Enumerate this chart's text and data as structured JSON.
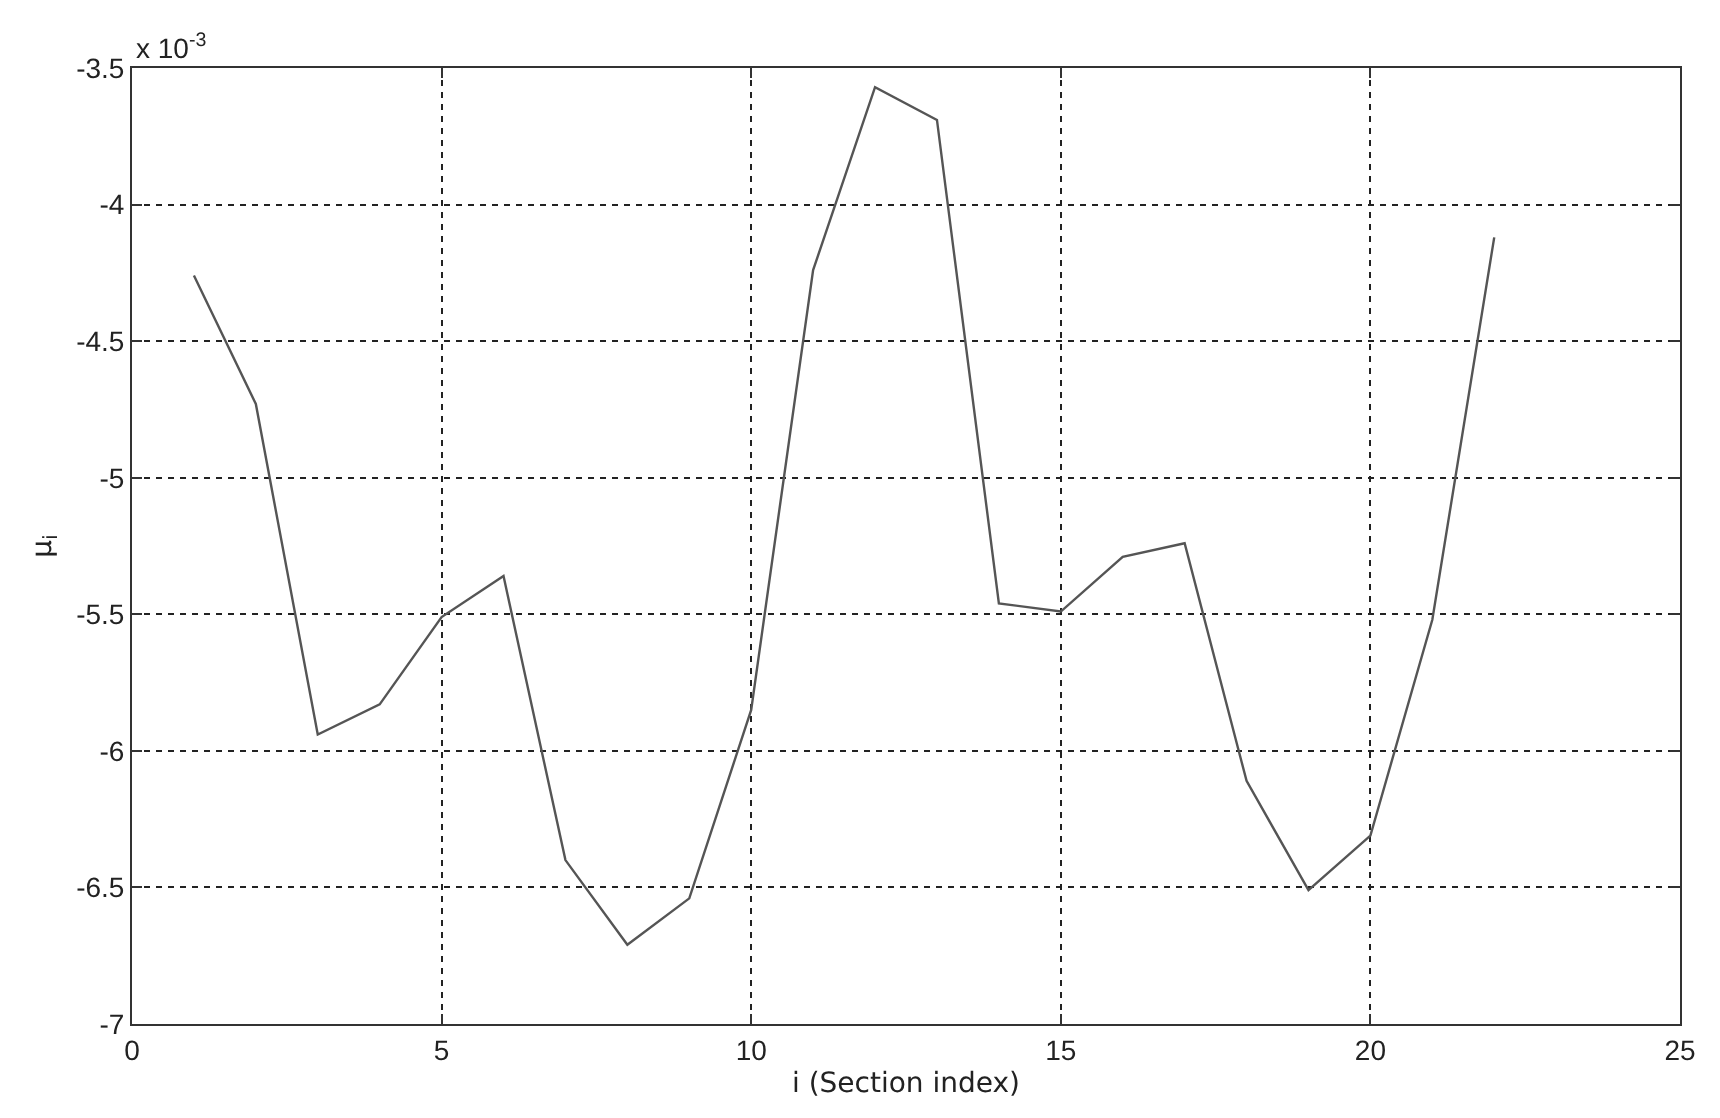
{
  "chart_data": {
    "type": "line",
    "xlabel": "i (Section index)",
    "ylabel": "μ$_{i}$",
    "annotations": [
      "x 10$^{-3}$"
    ],
    "x": [
      1,
      2,
      3,
      4,
      5,
      6,
      7,
      8,
      9,
      10,
      11,
      12,
      13,
      14,
      15,
      16,
      17,
      18,
      19,
      20,
      21,
      22
    ],
    "series": [
      {
        "color": "#555555",
        "values": [
          -4.26,
          -4.73,
          -5.94,
          -5.83,
          -5.51,
          -5.36,
          -6.4,
          -6.71,
          -6.54,
          -5.85,
          -4.24,
          -3.57,
          -3.69,
          -5.46,
          -5.49,
          -5.29,
          -5.24,
          -6.11,
          -6.51,
          -6.31,
          -5.52,
          -4.12
        ]
      }
    ],
    "xlim": [
      0,
      25
    ],
    "xticks": [
      0,
      5,
      10,
      15,
      20,
      25
    ],
    "ylim": [
      -7,
      -3.5
    ],
    "yticks": [
      -7,
      -6.5,
      -6,
      -5.5,
      -5,
      -4.5,
      -4,
      -3.5
    ],
    "grid": true
  }
}
